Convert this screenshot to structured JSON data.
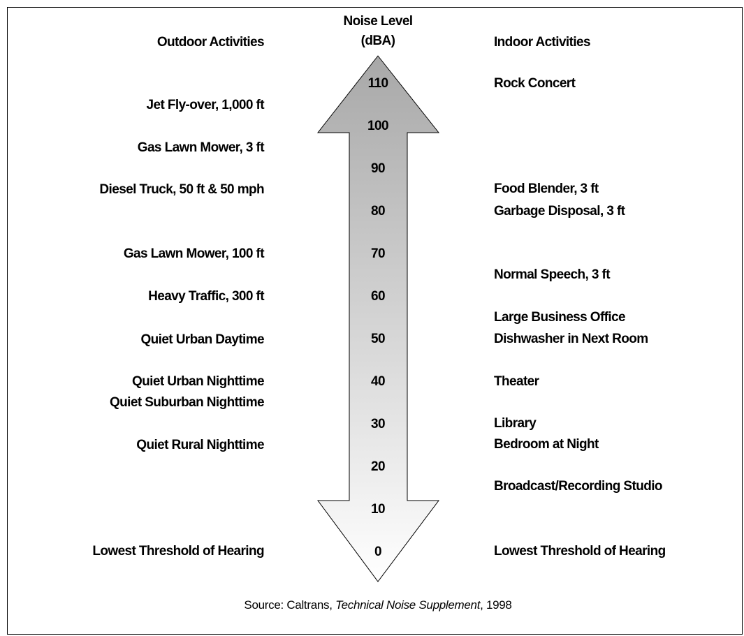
{
  "header": {
    "outdoor": "Outdoor Activities",
    "scale_line1": "Noise Level",
    "scale_line2": "(dBA)",
    "indoor": "Indoor Activities"
  },
  "scale": {
    "levels": [
      110,
      100,
      90,
      80,
      70,
      60,
      50,
      40,
      30,
      20,
      10,
      0
    ]
  },
  "outdoor": [
    "Jet Fly-over, 1,000 ft",
    "Gas Lawn Mower, 3 ft",
    "Diesel Truck, 50 ft & 50 mph",
    "Gas Lawn Mower, 100 ft",
    "Heavy Traffic, 300 ft",
    "Quiet Urban Daytime",
    "Quiet Urban Nighttime",
    "Quiet Suburban Nighttime",
    "Quiet Rural Nighttime",
    "Lowest Threshold of Hearing"
  ],
  "indoor": [
    "Rock Concert",
    "Food Blender, 3 ft",
    "Garbage Disposal, 3 ft",
    "Normal Speech, 3 ft",
    "Large Business Office",
    "Dishwasher in Next Room",
    "Theater",
    "Library",
    "Bedroom at Night",
    "Broadcast/Recording Studio",
    "Lowest Threshold of Hearing"
  ],
  "source": {
    "prefix": "Source:  Caltrans, ",
    "title": "Technical Noise Supplement",
    "suffix": ", 1998"
  }
}
